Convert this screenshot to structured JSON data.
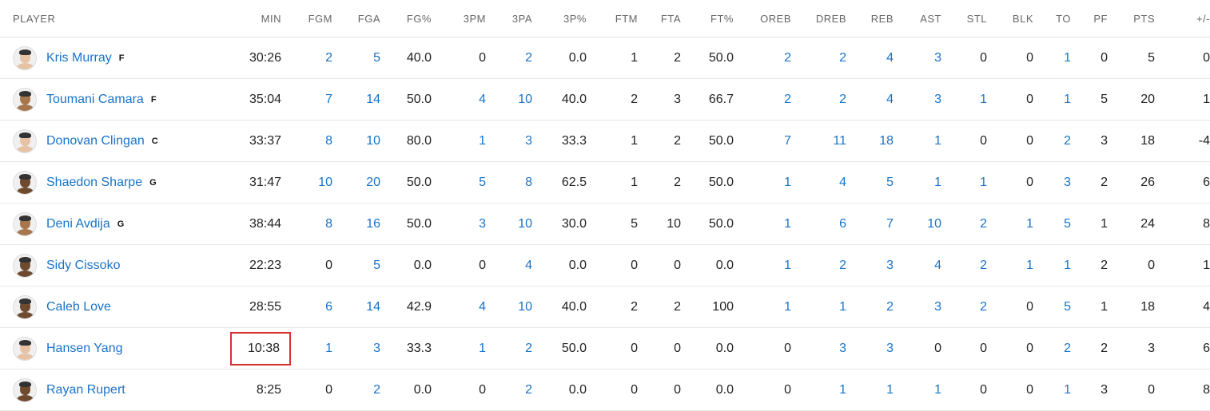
{
  "columns": [
    "PLAYER",
    "MIN",
    "FGM",
    "FGA",
    "FG%",
    "3PM",
    "3PA",
    "3P%",
    "FTM",
    "FTA",
    "FT%",
    "OREB",
    "DREB",
    "REB",
    "AST",
    "STL",
    "BLK",
    "TO",
    "PF",
    "PTS",
    "+/-"
  ],
  "rows": [
    {
      "name": "Kris Murray",
      "pos": "F",
      "stats": [
        "30:26",
        "2",
        "5",
        "40.0",
        "0",
        "2",
        "0.0",
        "1",
        "2",
        "50.0",
        "2",
        "2",
        "4",
        "3",
        "0",
        "0",
        "1",
        "0",
        "5",
        "0"
      ]
    },
    {
      "name": "Toumani Camara",
      "pos": "F",
      "stats": [
        "35:04",
        "7",
        "14",
        "50.0",
        "4",
        "10",
        "40.0",
        "2",
        "3",
        "66.7",
        "2",
        "2",
        "4",
        "3",
        "1",
        "0",
        "1",
        "5",
        "20",
        "1"
      ]
    },
    {
      "name": "Donovan Clingan",
      "pos": "C",
      "stats": [
        "33:37",
        "8",
        "10",
        "80.0",
        "1",
        "3",
        "33.3",
        "1",
        "2",
        "50.0",
        "7",
        "11",
        "18",
        "1",
        "0",
        "0",
        "2",
        "3",
        "18",
        "-4"
      ]
    },
    {
      "name": "Shaedon Sharpe",
      "pos": "G",
      "stats": [
        "31:47",
        "10",
        "20",
        "50.0",
        "5",
        "8",
        "62.5",
        "1",
        "2",
        "50.0",
        "1",
        "4",
        "5",
        "1",
        "1",
        "0",
        "3",
        "2",
        "26",
        "6"
      ]
    },
    {
      "name": "Deni Avdija",
      "pos": "G",
      "stats": [
        "38:44",
        "8",
        "16",
        "50.0",
        "3",
        "10",
        "30.0",
        "5",
        "10",
        "50.0",
        "1",
        "6",
        "7",
        "10",
        "2",
        "1",
        "5",
        "1",
        "24",
        "8"
      ]
    },
    {
      "name": "Sidy Cissoko",
      "pos": "",
      "stats": [
        "22:23",
        "0",
        "5",
        "0.0",
        "0",
        "4",
        "0.0",
        "0",
        "0",
        "0.0",
        "1",
        "2",
        "3",
        "4",
        "2",
        "1",
        "1",
        "2",
        "0",
        "1"
      ]
    },
    {
      "name": "Caleb Love",
      "pos": "",
      "stats": [
        "28:55",
        "6",
        "14",
        "42.9",
        "4",
        "10",
        "40.0",
        "2",
        "2",
        "100",
        "1",
        "1",
        "2",
        "3",
        "2",
        "0",
        "5",
        "1",
        "18",
        "4"
      ]
    },
    {
      "name": "Hansen Yang",
      "pos": "",
      "stats": [
        "10:38",
        "1",
        "3",
        "33.3",
        "1",
        "2",
        "50.0",
        "0",
        "0",
        "0.0",
        "0",
        "3",
        "3",
        "0",
        "0",
        "0",
        "2",
        "2",
        "3",
        "6"
      ],
      "highlight_min": true
    },
    {
      "name": "Rayan Rupert",
      "pos": "",
      "stats": [
        "8:25",
        "0",
        "2",
        "0.0",
        "0",
        "2",
        "0.0",
        "0",
        "0",
        "0.0",
        "0",
        "1",
        "1",
        "1",
        "0",
        "0",
        "1",
        "3",
        "0",
        "8"
      ]
    }
  ],
  "colors": {
    "link": "#1a73c8",
    "highlight_border": "#d9302c",
    "header_text": "#666666"
  }
}
